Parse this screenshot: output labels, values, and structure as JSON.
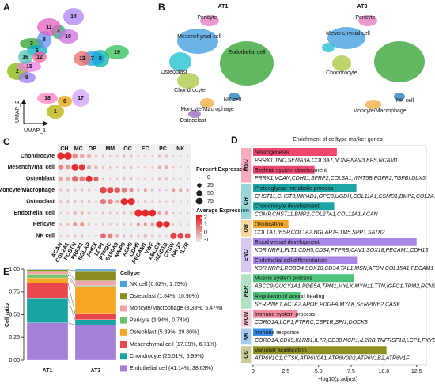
{
  "chart_data": [
    {
      "type": "embedding",
      "panel": "A",
      "xlabel": "UMAP_1",
      "ylabel": "UMAP_2",
      "cluster_labels": [
        "0",
        "1",
        "2",
        "3",
        "4",
        "5",
        "6",
        "7",
        "8",
        "9",
        "10",
        "11",
        "12",
        "13",
        "14",
        "15",
        "16",
        "17",
        "18",
        "19"
      ]
    },
    {
      "type": "embedding_split",
      "panel": "B",
      "subplots": [
        {
          "title": "AT1",
          "labels": [
            "Pericyte",
            "Mesenchymal cell",
            "Osteoblast",
            "Endothelial cell",
            "Chondrocyte",
            "NK cell",
            "Moncyte/Macrophage",
            "Osteoclast"
          ]
        },
        {
          "title": "AT3",
          "labels": [
            "Pericyte",
            "Mesenchymal cell",
            "Chondrocyte",
            "NK cell",
            "Moncyte/Macrophage"
          ]
        }
      ]
    },
    {
      "type": "dot",
      "panel": "C",
      "rows": [
        "Chondrocyte",
        "Mesenchymal cell",
        "Osteoblast",
        "Moncyte/Macrophage",
        "Osteoclast",
        "Endothelial cell",
        "Pericyte",
        "NK cell"
      ],
      "groups": [
        {
          "name": "CH",
          "genes": [
            "ACAN",
            "COL2A1"
          ]
        },
        {
          "name": "MC",
          "genes": [
            "POSTN",
            "PRRX1"
          ]
        },
        {
          "name": "OB",
          "genes": [
            "BGLAP",
            "PHEX"
          ]
        },
        {
          "name": "MM",
          "genes": [
            "LCP1",
            "PTPRC",
            "S100A9"
          ]
        },
        {
          "name": "OC",
          "genes": [
            "MMP9",
            "ACP5"
          ]
        },
        {
          "name": "EC",
          "genes": [
            "CDH5",
            "PECAM1",
            "VWF"
          ]
        },
        {
          "name": "PC",
          "genes": [
            "ABCC9",
            "HIGD1B"
          ]
        },
        {
          "name": "NK",
          "genes": [
            "CTSW",
            "NKG7",
            "IL7R"
          ]
        }
      ],
      "pct": [
        [
          85,
          90,
          40,
          25,
          20,
          5,
          5,
          2,
          2,
          5,
          5,
          2,
          2,
          2,
          5,
          5,
          1,
          1,
          1
        ],
        [
          40,
          30,
          75,
          60,
          20,
          10,
          5,
          3,
          2,
          5,
          5,
          3,
          3,
          3,
          10,
          10,
          2,
          2,
          2
        ],
        [
          30,
          20,
          50,
          40,
          60,
          30,
          3,
          2,
          2,
          5,
          5,
          2,
          2,
          2,
          5,
          5,
          1,
          1,
          1
        ],
        [
          5,
          5,
          5,
          5,
          5,
          2,
          70,
          60,
          50,
          40,
          20,
          5,
          10,
          5,
          2,
          2,
          10,
          10,
          5
        ],
        [
          5,
          5,
          5,
          5,
          5,
          2,
          50,
          40,
          10,
          80,
          85,
          3,
          5,
          3,
          2,
          2,
          2,
          2,
          2
        ],
        [
          2,
          2,
          10,
          10,
          5,
          2,
          5,
          3,
          2,
          5,
          5,
          85,
          80,
          75,
          10,
          10,
          2,
          2,
          2
        ],
        [
          5,
          5,
          20,
          20,
          5,
          2,
          3,
          2,
          2,
          2,
          2,
          10,
          10,
          10,
          70,
          65,
          2,
          2,
          2
        ],
        [
          2,
          2,
          5,
          5,
          2,
          2,
          40,
          35,
          10,
          5,
          5,
          5,
          10,
          5,
          2,
          2,
          60,
          55,
          40
        ]
      ],
      "exp": [
        [
          2,
          2,
          0.3,
          -0.2,
          -0.3,
          -0.5,
          -0.5,
          -0.6,
          -0.5,
          -0.5,
          -0.5,
          -0.5,
          -0.5,
          -0.5,
          -0.4,
          -0.4,
          -0.5,
          -0.5,
          -0.5
        ],
        [
          0.5,
          0.2,
          2,
          1.8,
          0,
          -0.2,
          -0.5,
          -0.5,
          -0.5,
          -0.5,
          -0.5,
          -0.5,
          -0.5,
          -0.5,
          -0.2,
          -0.2,
          -0.5,
          -0.5,
          -0.5
        ],
        [
          0,
          -0.2,
          1,
          0.6,
          2,
          1.2,
          -0.5,
          -0.5,
          -0.5,
          -0.5,
          -0.5,
          -0.5,
          -0.5,
          -0.5,
          -0.4,
          -0.4,
          -0.5,
          -0.5,
          -0.5
        ],
        [
          -0.5,
          -0.5,
          -0.5,
          -0.5,
          -0.5,
          -0.5,
          1.5,
          1.5,
          1.2,
          0.6,
          0.3,
          -0.4,
          0,
          -0.4,
          -0.5,
          -0.5,
          0,
          0,
          -0.2
        ],
        [
          -0.5,
          -0.5,
          -0.5,
          -0.5,
          -0.5,
          -0.5,
          0.6,
          0.5,
          -0.2,
          2,
          2,
          -0.5,
          -0.4,
          -0.5,
          -0.5,
          -0.5,
          -0.5,
          -0.5,
          -0.5
        ],
        [
          -0.6,
          -0.6,
          -0.3,
          -0.3,
          -0.5,
          -0.5,
          -0.5,
          -0.5,
          -0.5,
          -0.5,
          -0.5,
          2,
          2,
          2,
          0,
          0,
          -0.5,
          -0.5,
          -0.5
        ],
        [
          -0.5,
          -0.5,
          0.2,
          0.2,
          -0.5,
          -0.5,
          -0.5,
          -0.5,
          -0.5,
          -0.5,
          -0.5,
          0.2,
          0.2,
          0.2,
          2,
          2,
          -0.5,
          -0.5,
          -0.5
        ],
        [
          -0.6,
          -0.6,
          -0.5,
          -0.5,
          -0.6,
          -0.6,
          0.8,
          0.6,
          -0.3,
          -0.5,
          -0.5,
          -0.5,
          -0.3,
          -0.5,
          -0.5,
          -0.5,
          1.5,
          1.5,
          1.3
        ]
      ],
      "size_legend_title": "Percent Expressed",
      "size_ticks": [
        0,
        25,
        50,
        75
      ],
      "color_legend_title": "Average Expression",
      "clim": [
        -1.3,
        2.3
      ],
      "color_ticks": [
        2,
        1,
        0,
        -1
      ]
    },
    {
      "type": "hbar_grouped",
      "panel": "D",
      "title": "Enrichment of celltype marker genes",
      "xlabel": "−log10(p.adjust)",
      "xlim": [
        0,
        13
      ],
      "xticks": [
        0,
        {
          "value": 2.5,
          "label": "2.5"
        },
        {
          "value": 5,
          "label": "5.0"
        },
        {
          "value": 7.5,
          "label": "7.5"
        },
        {
          "value": 10,
          "label": "10.0"
        },
        {
          "value": 12.5,
          "label": "12.5"
        }
      ],
      "groups": [
        {
          "name": "MSC",
          "color": "#ef476f",
          "terms": [
            {
              "name": "Neurogenesis",
              "genes": "PRRX1,TNC,SEMA3A,COL3A1,NDNF,NAV3,EFS,NCAM1",
              "value": 6.4
            },
            {
              "name": "Skeletal system development",
              "genes": "PRRX1,VCAN,CDH11,SFRP2,COL3A1,WNT5B,FGFR2,TGFBI,DLX5",
              "value": 4.7
            }
          ]
        },
        {
          "name": "CH",
          "color": "#1ea5a5",
          "terms": [
            {
              "name": "Proteoglycan metabolic process",
              "genes": "CHST11,CHST3,IMPAD1,GPC3,UGDH,COL11A1,CSMD1,BMP2,COL2A1",
              "value": 7.9
            },
            {
              "name": "Chondrocyte development",
              "genes": "COMP,CHST11,BMP2,COL27A1,COL11A1,ACAN",
              "value": 6.2
            }
          ]
        },
        {
          "name": "OB",
          "color": "#f4a62a",
          "terms": [
            {
              "name": "Ossification",
              "genes": "COL1A1,IBSP,COL1A2,BGLAP,IFITM5,SPP1,SATB2",
              "value": 2.7
            }
          ]
        },
        {
          "name": "ENC",
          "color": "#a886e6",
          "terms": [
            {
              "name": "Blood vessel development",
              "genes": "KDR,NRP1,FLT1,CDH5,CD34,PTPRB,CAV1,SOX18,PECAM1,CDH13",
              "value": 12.5
            },
            {
              "name": "Endothelial cell differentiation",
              "genes": "KDR,NRP1,ROBO4,SOX18,CD34,TAL1,MSN,AFDN,COL15A1,PECAM1",
              "value": 8.0
            }
          ]
        },
        {
          "name": "PER",
          "color": "#4fc27a",
          "terms": [
            {
              "name": "Muscle system process",
              "genes": "ABCC9,GUCY1A1,PDE5A,TPM1,MYLK,MYH11,TTN,IGFC1,TPM2,RCN3",
              "value": 7.7
            },
            {
              "name": "Regulation of wound healing",
              "genes": "SERPINE1,ACTA2,APOE,PDGFA,MYLK,SERPINE2,CASK",
              "value": 3.6
            }
          ]
        },
        {
          "name": "MON",
          "color": "#f28ba0",
          "terms": [
            {
              "name": "Immune system process",
              "genes": "CORO1A,LCP1,PTPRC,CSF1R,SPI1,DOCK8",
              "value": 3.4
            }
          ]
        },
        {
          "name": "NK",
          "color": "#3a8ee6",
          "terms": [
            {
              "name": "Immune response",
              "genes": "CORO1A,CD69,KLRB1,IL7R,CD38,NCR1,IL2RB,TNFRSF18,LCP1,FXYD5",
              "value": 1.5
            }
          ]
        },
        {
          "name": "OC",
          "color": "#8f8f22",
          "terms": [
            {
              "name": "Vacuolar acidification",
              "genes": "ATP6V1C1,CTSK,ATP6V0A1,ATP6V0D2,ATP6V1B2,ATP6V1F",
              "value": 10.2
            }
          ]
        }
      ]
    },
    {
      "type": "stacked_bar",
      "panel": "E",
      "categories": [
        "AT1",
        "AT3"
      ],
      "ylabel": "Cell ratio",
      "legend_title": "Cellype",
      "ylim": [
        0,
        1
      ],
      "yticks": [
        {
          "value": 0,
          "label": "0.00"
        },
        {
          "value": 0.25,
          "label": "0.25"
        },
        {
          "value": 0.5,
          "label": "0.50"
        },
        {
          "value": 0.75,
          "label": "0.75"
        },
        {
          "value": 1,
          "label": "1.00"
        }
      ],
      "series": [
        {
          "name": "NK cell (0.62%, 1.75%)",
          "color": "#4aa3df",
          "values": [
            0.0062,
            0.0175
          ]
        },
        {
          "name": "Osteoclast (1.64%, 10.90%)",
          "color": "#8b8b1e",
          "values": [
            0.0164,
            0.109
          ]
        },
        {
          "name": "Moncyte/Macrophage (3.38%, 5.47%)",
          "color": "#f4a3a8",
          "values": [
            0.0338,
            0.0547
          ]
        },
        {
          "name": "Pericyte (3.94%, 0.74%)",
          "color": "#6cc36c",
          "values": [
            0.0394,
            0.0074
          ]
        },
        {
          "name": "Osteoblast (5.39%, 29.80%)",
          "color": "#f5a623",
          "values": [
            0.0539,
            0.298
          ]
        },
        {
          "name": "Mesenchymal cell (17.39%, 6.71%)",
          "color": "#e8474e",
          "values": [
            0.1739,
            0.0671
          ]
        },
        {
          "name": "Chondrocyte (26.51%, 5.99%)",
          "color": "#1aa3a3",
          "values": [
            0.2651,
            0.0599
          ]
        },
        {
          "name": "Endothelial cell (41.14%, 38.63%)",
          "color": "#a57fd9",
          "values": [
            0.4114,
            0.3863
          ]
        }
      ]
    }
  ]
}
